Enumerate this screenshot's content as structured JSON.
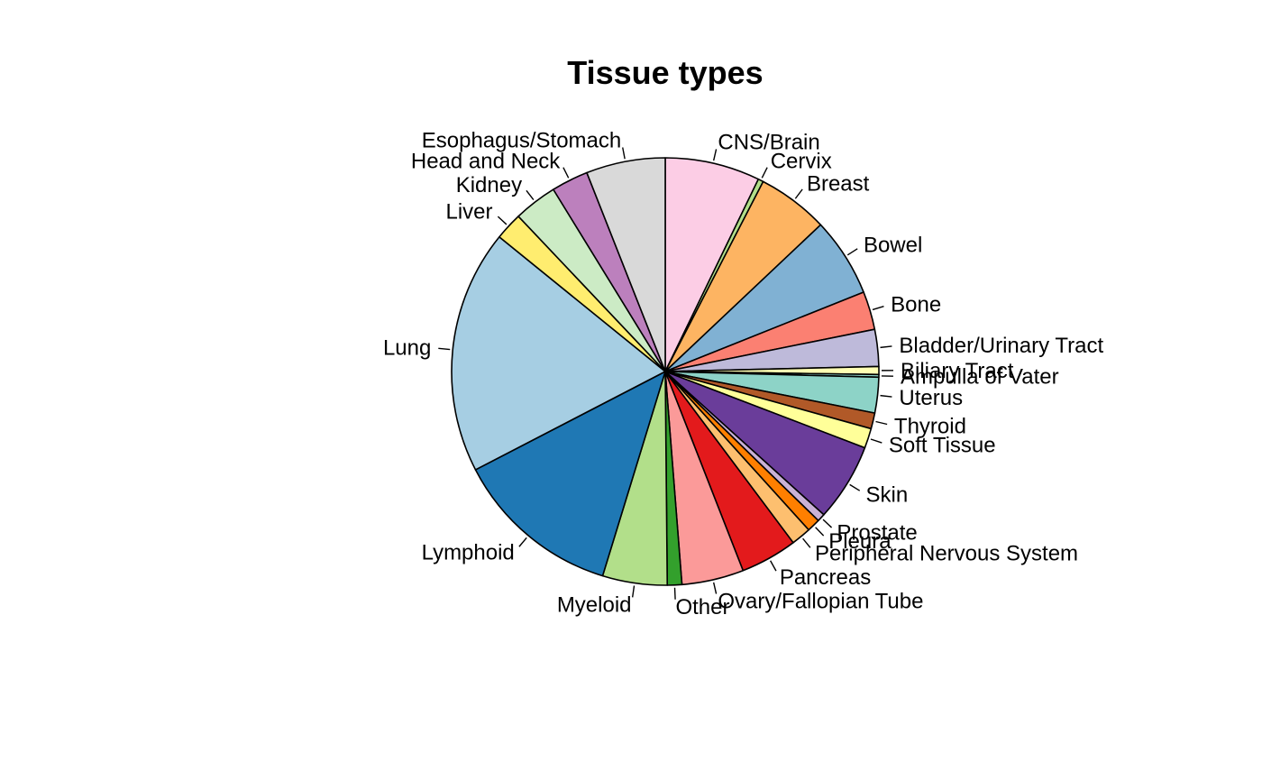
{
  "chart_data": {
    "type": "pie",
    "title": "Tissue types",
    "start_angle_deg": 90,
    "direction": "clockwise",
    "stroke_color": "#000000",
    "slices": [
      {
        "label": "CNS/Brain",
        "value": 7.2,
        "color": "#fccde5"
      },
      {
        "label": "Cervix",
        "value": 0.4,
        "color": "#b2df8a"
      },
      {
        "label": "Breast",
        "value": 5.4,
        "color": "#fdb462"
      },
      {
        "label": "Bowel",
        "value": 6.0,
        "color": "#80b1d3"
      },
      {
        "label": "Bone",
        "value": 2.9,
        "color": "#fb8072"
      },
      {
        "label": "Bladder/Urinary Tract",
        "value": 2.8,
        "color": "#bebada"
      },
      {
        "label": "Biliary Tract",
        "value": 0.6,
        "color": "#ffffb3"
      },
      {
        "label": "Ampulla of Vater",
        "value": 0.2,
        "color": "#8dd3c7"
      },
      {
        "label": "Uterus",
        "value": 2.7,
        "color": "#8dd3c7"
      },
      {
        "label": "Thyroid",
        "value": 1.2,
        "color": "#b15928"
      },
      {
        "label": "Soft Tissue",
        "value": 1.5,
        "color": "#ffff99"
      },
      {
        "label": "Skin",
        "value": 5.9,
        "color": "#6a3d9a"
      },
      {
        "label": "Prostate",
        "value": 0.6,
        "color": "#cab2d6"
      },
      {
        "label": "Pleura",
        "value": 1.0,
        "color": "#ff7f00"
      },
      {
        "label": "Peripheral Nervous System",
        "value": 1.5,
        "color": "#fdbf6f"
      },
      {
        "label": "Pancreas",
        "value": 4.3,
        "color": "#e31a1c"
      },
      {
        "label": "Ovary/Fallopian Tube",
        "value": 4.7,
        "color": "#fb9a99"
      },
      {
        "label": "Other",
        "value": 1.1,
        "color": "#33a02c"
      },
      {
        "label": "Myeloid",
        "value": 4.9,
        "color": "#b2df8a"
      },
      {
        "label": "Lymphoid",
        "value": 12.7,
        "color": "#1f78b4"
      },
      {
        "label": "Lung",
        "value": 18.5,
        "color": "#a6cee3"
      },
      {
        "label": "Liver",
        "value": 2.1,
        "color": "#ffed6f"
      },
      {
        "label": "Kidney",
        "value": 3.3,
        "color": "#ccebc5"
      },
      {
        "label": "Head and Neck",
        "value": 2.8,
        "color": "#bc80bd"
      },
      {
        "label": "Esophagus/Stomach",
        "value": 6.0,
        "color": "#d9d9d9"
      }
    ]
  }
}
